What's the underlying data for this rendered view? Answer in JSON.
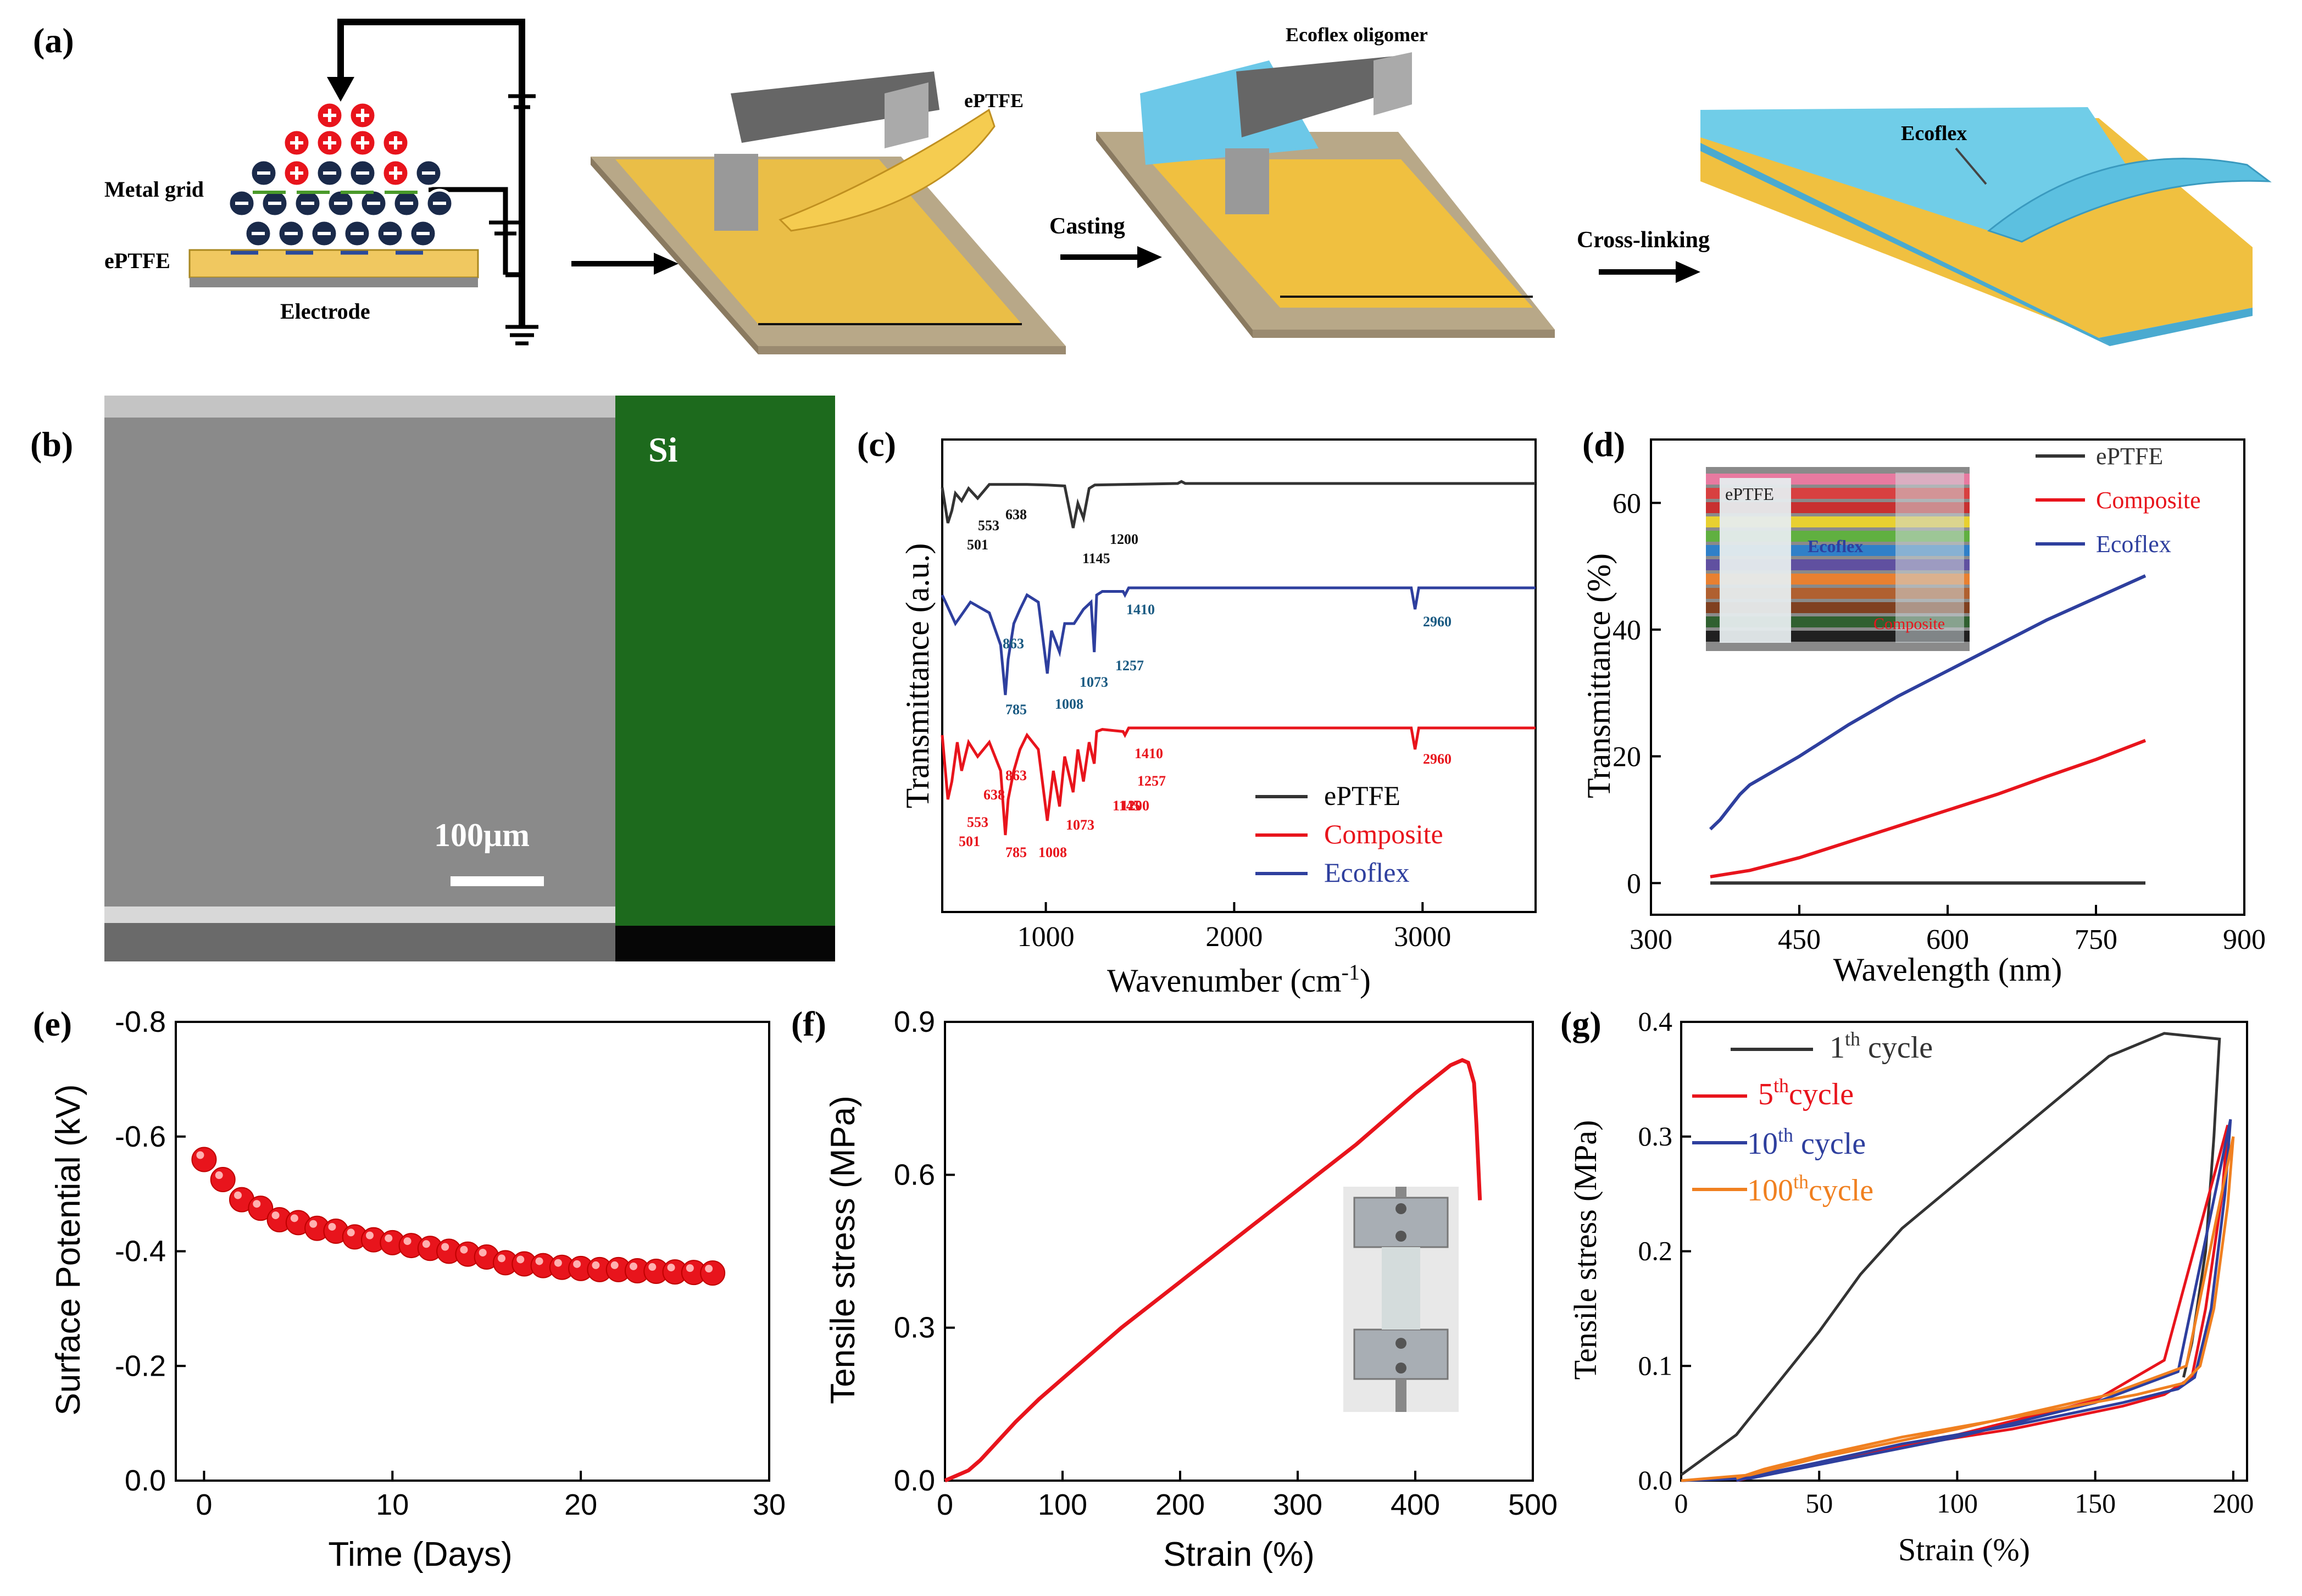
{
  "panel_labels": {
    "a": "(a)",
    "b": "(b)",
    "c": "(c)",
    "d": "(d)",
    "e": "(e)",
    "f": "(f)",
    "g": "(g)"
  },
  "panel_a": {
    "metal_grid": "Metal grid",
    "eptfe": "ePTFE",
    "electrode": "Electrode",
    "eptfe_roll": "ePTFE",
    "casting": "Casting",
    "ecoflex_oligomer": "Ecoflex oligomer",
    "cross_linking": "Cross-linking",
    "ecoflex": "Ecoflex"
  },
  "panel_b": {
    "si": "Si",
    "scale": "100μm"
  },
  "colors": {
    "black": "#333333",
    "red": "#e8141c",
    "blue": "#2e3f9e",
    "teal": "#1a5a82",
    "orange": "#f08020",
    "green": "#1e8a1e",
    "ball": "#e8141c"
  },
  "chart_data": [
    {
      "panel": "c",
      "type": "line",
      "xlabel": "Wavenumber (cm",
      "xlabel_sup": "-1",
      "xlabel_end": ")",
      "ylabel": "Transmittance (a.u.)",
      "xlim": [
        450,
        3600
      ],
      "xticks": [
        "1000",
        "2000",
        "3000"
      ],
      "legend": [
        "ePTFE",
        "Composite",
        "Ecoflex"
      ],
      "series": [
        {
          "name": "ePTFE",
          "offset": 0,
          "points": [
            [
              450,
              0.08
            ],
            [
              480,
              0.8
            ],
            [
              501,
              0.55
            ],
            [
              520,
              0.2
            ],
            [
              553,
              0.35
            ],
            [
              590,
              0.1
            ],
            [
              638,
              0.3
            ],
            [
              700,
              0.02
            ],
            [
              900,
              0.02
            ],
            [
              1000,
              0.03
            ],
            [
              1100,
              0.05
            ],
            [
              1145,
              0.9
            ],
            [
              1170,
              0.4
            ],
            [
              1200,
              0.7
            ],
            [
              1230,
              0.1
            ],
            [
              1260,
              0.03
            ],
            [
              1700,
              0.0
            ],
            [
              1720,
              -0.04
            ],
            [
              1740,
              0
            ],
            [
              3600,
              0
            ]
          ]
        },
        {
          "name": "Ecoflex",
          "offset": 1,
          "points": [
            [
              450,
              0.1
            ],
            [
              520,
              0.5
            ],
            [
              600,
              0.2
            ],
            [
              700,
              0.35
            ],
            [
              760,
              0.8
            ],
            [
              785,
              1.5
            ],
            [
              800,
              1.0
            ],
            [
              830,
              0.5
            ],
            [
              863,
              0.3
            ],
            [
              900,
              0.1
            ],
            [
              960,
              0.2
            ],
            [
              1008,
              1.2
            ],
            [
              1030,
              0.6
            ],
            [
              1073,
              0.9
            ],
            [
              1100,
              0.5
            ],
            [
              1150,
              0.5
            ],
            [
              1200,
              0.3
            ],
            [
              1240,
              0.2
            ],
            [
              1257,
              0.9
            ],
            [
              1270,
              0.1
            ],
            [
              1300,
              0.05
            ],
            [
              1410,
              0.05
            ],
            [
              1420,
              0.1
            ],
            [
              1440,
              0
            ],
            [
              2940,
              0
            ],
            [
              2960,
              0.3
            ],
            [
              2980,
              0
            ],
            [
              3600,
              0
            ]
          ]
        },
        {
          "name": "Composite",
          "offset": 2,
          "points": [
            [
              450,
              0.1
            ],
            [
              480,
              1.0
            ],
            [
              501,
              0.75
            ],
            [
              530,
              0.2
            ],
            [
              553,
              0.6
            ],
            [
              590,
              0.2
            ],
            [
              638,
              0.4
            ],
            [
              700,
              0.2
            ],
            [
              760,
              0.6
            ],
            [
              785,
              1.5
            ],
            [
              800,
              1.0
            ],
            [
              830,
              0.6
            ],
            [
              863,
              0.3
            ],
            [
              900,
              0.1
            ],
            [
              960,
              0.3
            ],
            [
              1008,
              1.3
            ],
            [
              1040,
              0.6
            ],
            [
              1073,
              1.1
            ],
            [
              1100,
              0.4
            ],
            [
              1145,
              0.9
            ],
            [
              1170,
              0.3
            ],
            [
              1200,
              0.75
            ],
            [
              1230,
              0.2
            ],
            [
              1257,
              0.5
            ],
            [
              1270,
              0.05
            ],
            [
              1300,
              0.02
            ],
            [
              1410,
              0.05
            ],
            [
              1420,
              0.1
            ],
            [
              1440,
              0
            ],
            [
              2940,
              0
            ],
            [
              2960,
              0.3
            ],
            [
              2980,
              0
            ],
            [
              3600,
              0
            ]
          ]
        }
      ],
      "annotations": [
        {
          "series": "ePTFE",
          "labels": [
            "501",
            "553",
            "638",
            "1200",
            "1145"
          ]
        },
        {
          "series": "Ecoflex",
          "labels": [
            "863",
            "785",
            "1008",
            "1073",
            "1257",
            "1410",
            "2960"
          ]
        },
        {
          "series": "Composite",
          "labels": [
            "553",
            "638",
            "501",
            "863",
            "785",
            "1008",
            "1073",
            "1145",
            "1257",
            "1200",
            "1410",
            "2960"
          ]
        }
      ]
    },
    {
      "panel": "d",
      "type": "line",
      "xlabel": "Wavelength (nm)",
      "ylabel": "Transmittance (%)",
      "xlim": [
        300,
        900
      ],
      "ylim": [
        -5,
        70
      ],
      "xticks": [
        300,
        450,
        600,
        750,
        900
      ],
      "yticks": [
        0,
        20,
        40,
        60
      ],
      "legend": [
        "ePTFE",
        "Composite",
        "Ecoflex"
      ],
      "inset_labels": [
        "ePTFE",
        "Ecoflex",
        "Composite"
      ],
      "series": [
        {
          "name": "ePTFE",
          "x": [
            360,
            800
          ],
          "y": [
            0,
            0
          ]
        },
        {
          "name": "Composite",
          "x": [
            360,
            400,
            450,
            500,
            550,
            600,
            650,
            700,
            750,
            800
          ],
          "y": [
            1,
            2,
            4,
            6.5,
            9,
            11.5,
            14,
            16.8,
            19.5,
            22.5
          ]
        },
        {
          "name": "Ecoflex",
          "x": [
            360,
            370,
            380,
            390,
            400,
            450,
            500,
            550,
            600,
            650,
            700,
            750,
            800
          ],
          "y": [
            8.5,
            10,
            12,
            14,
            15.5,
            20,
            25,
            29.5,
            33.5,
            37.5,
            41.5,
            45,
            48.5
          ]
        }
      ]
    },
    {
      "panel": "e",
      "type": "scatter",
      "xlabel": "Time (Days)",
      "ylabel": "Surface Potential (kV)",
      "xlim": [
        -1.5,
        30
      ],
      "ylim": [
        0,
        -0.8
      ],
      "xticks": [
        0,
        10,
        20,
        30
      ],
      "yticks": [
        "0.0",
        "-0.2",
        "-0.4",
        "-0.6",
        "-0.8"
      ],
      "x": [
        0,
        1,
        2,
        3,
        4,
        5,
        6,
        7,
        8,
        9,
        10,
        11,
        12,
        13,
        14,
        15,
        16,
        17,
        18,
        19,
        20,
        21,
        22,
        23,
        24,
        25,
        26,
        27
      ],
      "y": [
        -0.56,
        -0.525,
        -0.49,
        -0.475,
        -0.455,
        -0.45,
        -0.44,
        -0.435,
        -0.425,
        -0.42,
        -0.415,
        -0.41,
        -0.405,
        -0.4,
        -0.395,
        -0.39,
        -0.38,
        -0.378,
        -0.375,
        -0.372,
        -0.37,
        -0.368,
        -0.368,
        -0.366,
        -0.365,
        -0.364,
        -0.363,
        -0.362
      ]
    },
    {
      "panel": "f",
      "type": "line",
      "xlabel": "Strain (%)",
      "ylabel": "Tensile stress (MPa)",
      "xlim": [
        0,
        500
      ],
      "ylim": [
        0,
        0.9
      ],
      "xticks": [
        0,
        100,
        200,
        300,
        400,
        500
      ],
      "yticks": [
        "0.0",
        "0.3",
        "0.6",
        "0.9"
      ],
      "series": [
        {
          "name": "stress-strain",
          "x": [
            0,
            10,
            20,
            30,
            40,
            50,
            60,
            80,
            100,
            150,
            200,
            250,
            300,
            350,
            400,
            430,
            440,
            445,
            450,
            452,
            455
          ],
          "y": [
            0,
            0.01,
            0.02,
            0.04,
            0.065,
            0.09,
            0.115,
            0.16,
            0.2,
            0.3,
            0.39,
            0.48,
            0.57,
            0.66,
            0.76,
            0.815,
            0.825,
            0.82,
            0.78,
            0.7,
            0.55
          ]
        }
      ]
    },
    {
      "panel": "g",
      "type": "line",
      "xlabel": "Strain (%)",
      "ylabel": "Tensile stress (MPa)",
      "xlim": [
        0,
        205
      ],
      "ylim": [
        0,
        0.4
      ],
      "xticks": [
        0,
        50,
        100,
        150,
        200
      ],
      "yticks": [
        "0.0",
        "0.1",
        "0.2",
        "0.3",
        "0.4"
      ],
      "legend": [
        {
          "pre": "1",
          "sup": "th",
          "post": " cycle"
        },
        {
          "pre": "5",
          "sup": "th",
          "post": "cycle"
        },
        {
          "pre": "10",
          "sup": "th",
          "post": " cycle"
        },
        {
          "pre": "100",
          "sup": "th",
          "post": "cycle"
        }
      ],
      "series": [
        {
          "name": "1th cycle",
          "x": [
            0,
            20,
            30,
            40,
            50,
            65,
            80,
            100,
            120,
            140,
            155,
            170,
            175,
            195,
            193,
            190,
            185,
            182
          ],
          "y": [
            0.005,
            0.04,
            0.07,
            0.1,
            0.13,
            0.18,
            0.22,
            0.26,
            0.3,
            0.34,
            0.37,
            0.385,
            0.39,
            0.385,
            0.3,
            0.2,
            0.12,
            0.09
          ]
        },
        {
          "name": "5thcycle",
          "x": [
            0,
            25,
            50,
            100,
            150,
            175,
            198,
            196,
            190,
            185,
            175,
            160,
            120,
            80,
            50,
            30,
            20
          ],
          "y": [
            0,
            0.003,
            0.015,
            0.04,
            0.07,
            0.105,
            0.31,
            0.25,
            0.15,
            0.09,
            0.075,
            0.065,
            0.045,
            0.03,
            0.015,
            0.005,
            0
          ]
        },
        {
          "name": "10th cycle",
          "x": [
            0,
            25,
            50,
            100,
            150,
            180,
            199,
            197,
            192,
            186,
            180,
            160,
            120,
            80,
            50,
            30,
            20
          ],
          "y": [
            0,
            0.002,
            0.014,
            0.038,
            0.068,
            0.095,
            0.315,
            0.25,
            0.15,
            0.09,
            0.08,
            0.068,
            0.048,
            0.032,
            0.016,
            0.006,
            0
          ]
        },
        {
          "name": "100thcycle",
          "x": [
            0,
            25,
            50,
            100,
            155,
            183,
            200,
            198,
            193,
            188,
            182,
            165,
            120,
            80,
            50,
            30,
            20
          ],
          "y": [
            0,
            0.005,
            0.02,
            0.045,
            0.075,
            0.1,
            0.3,
            0.24,
            0.15,
            0.1,
            0.085,
            0.075,
            0.055,
            0.038,
            0.022,
            0.01,
            0.002
          ]
        }
      ]
    }
  ]
}
